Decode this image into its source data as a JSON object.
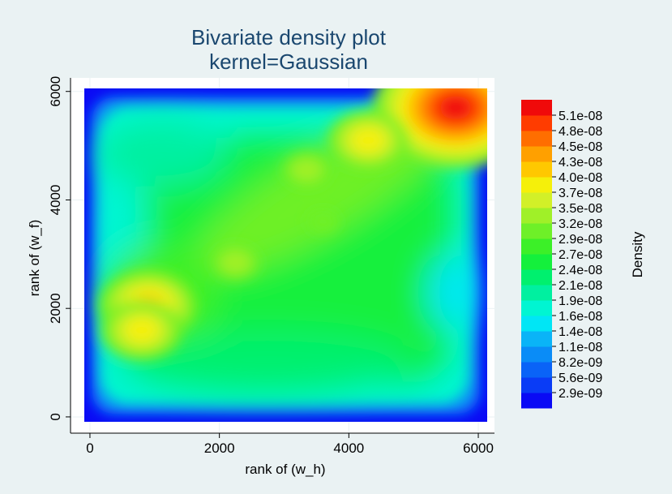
{
  "chart_data": {
    "type": "heatmap",
    "title": "Bivariate density plot",
    "subtitle": "kernel=Gaussian",
    "xlabel": "rank of (w_h)",
    "ylabel": "rank of (w_f)",
    "xlim": [
      -300,
      6250
    ],
    "ylim": [
      -300,
      6250
    ],
    "x_ticks": [
      0,
      2000,
      4000,
      6000
    ],
    "y_ticks": [
      0,
      2000,
      4000,
      6000
    ],
    "x_tick_labels": [
      "0",
      "2000",
      "4000",
      "6000"
    ],
    "y_tick_labels": [
      "0",
      "2000",
      "4000",
      "6000"
    ],
    "grid": true,
    "colorbar": {
      "label": "Density",
      "placement": "right",
      "levels": [
        "2.9e-09",
        "5.6e-09",
        "8.2e-09",
        "1.1e-08",
        "1.4e-08",
        "1.6e-08",
        "1.9e-08",
        "2.1e-08",
        "2.4e-08",
        "2.7e-08",
        "2.9e-08",
        "3.2e-08",
        "3.5e-08",
        "3.7e-08",
        "4.0e-08",
        "4.3e-08",
        "4.5e-08",
        "4.8e-08",
        "5.1e-08"
      ],
      "colors": [
        "#0a0af5",
        "#0a3cf6",
        "#0a63f7",
        "#0a8cf7",
        "#0ab4f7",
        "#00e6f5",
        "#00f5d2",
        "#00f0a0",
        "#00f06e",
        "#14f03c",
        "#3cf028",
        "#6ef028",
        "#a0f028",
        "#d2f028",
        "#f5f00a",
        "#ffc800",
        "#ffa000",
        "#ff6e00",
        "#ff3c00",
        "#f00a0a"
      ]
    },
    "density_peaks": [
      {
        "x": 5650,
        "y": 5700,
        "density": 5.1e-08
      },
      {
        "x": 900,
        "y": 2050,
        "density": 4e-08
      },
      {
        "x": 800,
        "y": 1600,
        "density": 3.7e-08
      },
      {
        "x": 4300,
        "y": 5100,
        "density": 3.8e-08
      },
      {
        "x": 2250,
        "y": 2850,
        "density": 3.3e-08
      },
      {
        "x": 3350,
        "y": 4550,
        "density": 3.2e-08
      },
      {
        "x": 3600,
        "y": 3600,
        "density": 3e-08
      }
    ]
  }
}
